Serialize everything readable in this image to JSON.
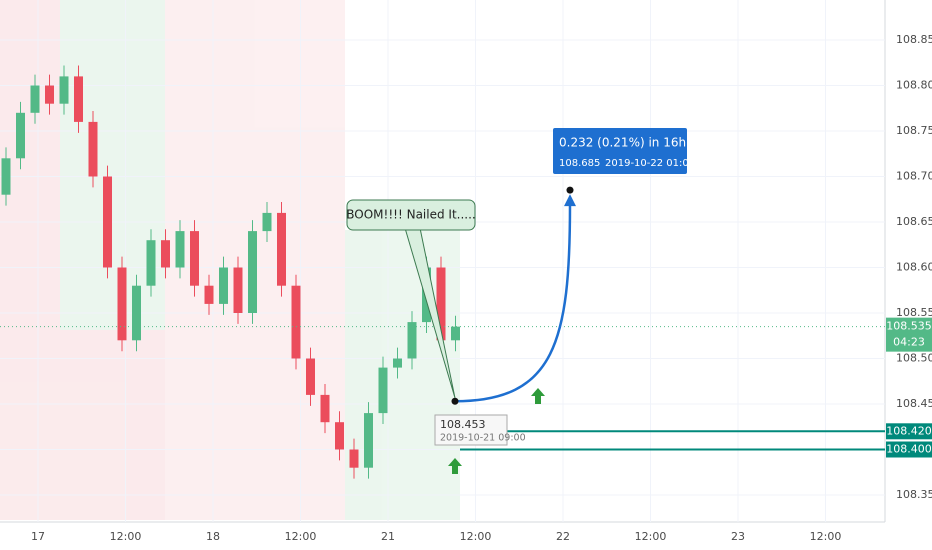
{
  "chart_data": {
    "type": "candlestick",
    "up_color": "#53b987",
    "down_color": "#eb4d5c",
    "open": [
      108.68,
      108.72,
      108.77,
      108.8,
      108.78,
      108.81,
      108.76,
      108.7,
      108.6,
      108.52,
      108.58,
      108.63,
      108.6,
      108.64,
      108.58,
      108.56,
      108.6,
      108.55,
      108.64,
      108.66,
      108.58,
      108.5,
      108.46,
      108.43,
      108.4,
      108.38,
      108.44,
      108.49,
      108.5,
      108.54,
      108.6,
      108.52
    ],
    "high": [
      108.732,
      108.782,
      108.812,
      108.812,
      108.822,
      108.822,
      108.772,
      108.712,
      108.612,
      108.592,
      108.642,
      108.642,
      108.652,
      108.652,
      108.592,
      108.612,
      108.612,
      108.652,
      108.672,
      108.672,
      108.592,
      108.512,
      108.472,
      108.442,
      108.412,
      108.452,
      108.502,
      108.512,
      108.552,
      108.612,
      108.612,
      108.547
    ],
    "low": [
      108.668,
      108.708,
      108.758,
      108.768,
      108.768,
      108.748,
      108.688,
      108.588,
      108.508,
      108.508,
      108.568,
      108.588,
      108.588,
      108.568,
      108.548,
      108.548,
      108.538,
      108.538,
      108.628,
      108.568,
      108.488,
      108.448,
      108.418,
      108.388,
      108.368,
      108.368,
      108.428,
      108.478,
      108.488,
      108.528,
      108.508,
      108.508
    ],
    "close": [
      108.72,
      108.77,
      108.8,
      108.78,
      108.81,
      108.76,
      108.7,
      108.6,
      108.52,
      108.58,
      108.63,
      108.6,
      108.64,
      108.58,
      108.56,
      108.6,
      108.55,
      108.64,
      108.66,
      108.58,
      108.5,
      108.46,
      108.43,
      108.4,
      108.38,
      108.44,
      108.49,
      108.5,
      108.54,
      108.6,
      108.52,
      108.535
    ],
    "ylim": [
      108.35,
      108.85
    ],
    "yticks": [
      {
        "value": 108.35,
        "label": "108.350"
      },
      {
        "value": 108.4,
        "label": "108.400"
      },
      {
        "value": 108.45,
        "label": "108.450"
      },
      {
        "value": 108.5,
        "label": "108.500"
      },
      {
        "value": 108.55,
        "label": "108.550"
      },
      {
        "value": 108.6,
        "label": "108.600"
      },
      {
        "value": 108.65,
        "label": "108.650"
      },
      {
        "value": 108.7,
        "label": "108.700"
      },
      {
        "value": 108.75,
        "label": "108.750"
      },
      {
        "value": 108.8,
        "label": "108.800"
      },
      {
        "value": 108.85,
        "label": "108.850"
      }
    ],
    "x_labels": [
      "17",
      "12:00",
      "18",
      "12:00",
      "21",
      "12:00",
      "22",
      "12:00",
      "23",
      "12:00"
    ],
    "grid": true,
    "levels": [
      {
        "value": 108.42,
        "label": "108.420",
        "color": "#00897b"
      },
      {
        "value": 108.4,
        "label": "108.400",
        "color": "#00897b"
      }
    ],
    "last_price": {
      "value": 108.535,
      "label": "108.535",
      "countdown": "04:23"
    },
    "annotation": "BOOM!!!!   Nailed It.....",
    "measure": {
      "start": {
        "value": 108.453,
        "label": "108.453",
        "time": "2019-10-21 09:00"
      },
      "end": {
        "value": 108.685,
        "label": "108.685",
        "time": "2019-10-22  01:00"
      },
      "summary": "0.232 (0.21%) in 16h",
      "color": "#1e6fd0"
    }
  }
}
